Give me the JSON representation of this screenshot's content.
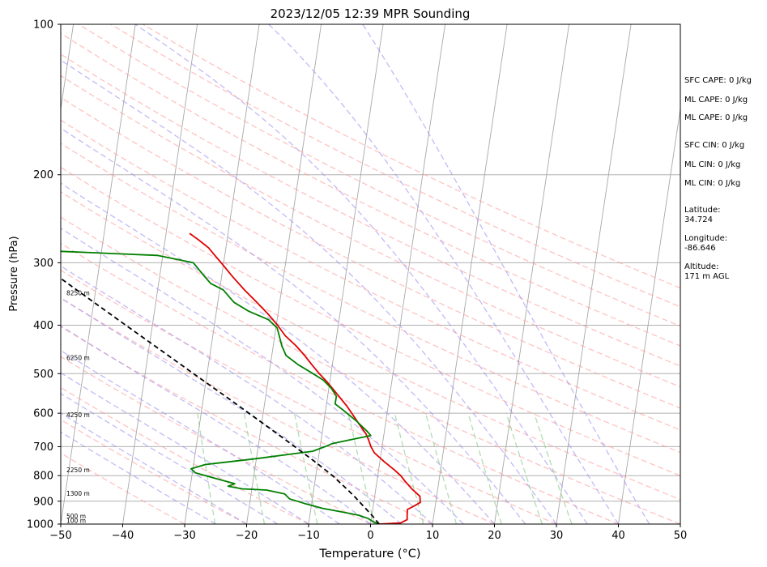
{
  "chart_data": {
    "type": "line",
    "title": "2023/12/05 12:39 MPR Sounding",
    "xlabel": "Temperature (°C)",
    "ylabel": "Pressure (hPa)",
    "xlim": [
      -50,
      50
    ],
    "ylim": [
      1000,
      100
    ],
    "y_scale": "log",
    "skew": "skew-T",
    "grid": true,
    "x_ticks": [
      -50,
      -40,
      -30,
      -20,
      -10,
      0,
      10,
      20,
      30,
      40,
      50
    ],
    "x_tick_labels": [
      "−50",
      "−40",
      "−30",
      "−20",
      "−10",
      "0",
      "10",
      "20",
      "30",
      "40",
      "50"
    ],
    "y_ticks": [
      1000,
      900,
      800,
      700,
      600,
      500,
      400,
      300,
      200,
      100
    ],
    "y_tick_labels": [
      "1000",
      "900",
      "800",
      "700",
      "600",
      "500",
      "400",
      "300",
      "200",
      "100"
    ],
    "height_labels": [
      {
        "p": 985,
        "label": "100 m"
      },
      {
        "p": 965,
        "label": "500 m"
      },
      {
        "p": 870,
        "label": "1300 m"
      },
      {
        "p": 780,
        "label": "2250 m"
      },
      {
        "p": 605,
        "label": "4250 m"
      },
      {
        "p": 465,
        "label": "6250 m"
      },
      {
        "p": 345,
        "label": "8250 m"
      }
    ],
    "series": [
      {
        "role": "temperature",
        "color": "#e00000",
        "points": [
          [
            1000,
            1.4
          ],
          [
            995,
            4.8
          ],
          [
            980,
            5.8
          ],
          [
            960,
            5.7
          ],
          [
            935,
            5.6
          ],
          [
            920,
            6.6
          ],
          [
            905,
            7.5
          ],
          [
            880,
            7.3
          ],
          [
            850,
            5.8
          ],
          [
            820,
            4.5
          ],
          [
            800,
            3.7
          ],
          [
            780,
            2.6
          ],
          [
            750,
            0.7
          ],
          [
            720,
            -1.1
          ],
          [
            700,
            -1.8
          ],
          [
            680,
            -2.3
          ],
          [
            660,
            -2.9
          ],
          [
            630,
            -4.3
          ],
          [
            600,
            -5.7
          ],
          [
            580,
            -6.7
          ],
          [
            560,
            -7.9
          ],
          [
            540,
            -9.1
          ],
          [
            520,
            -10.4
          ],
          [
            500,
            -11.9
          ],
          [
            480,
            -13.3
          ],
          [
            460,
            -14.7
          ],
          [
            440,
            -16.3
          ],
          [
            420,
            -18.3
          ],
          [
            400,
            -19.8
          ],
          [
            380,
            -21.6
          ],
          [
            360,
            -23.7
          ],
          [
            340,
            -26.0
          ],
          [
            320,
            -28.2
          ],
          [
            300,
            -30.4
          ],
          [
            290,
            -31.6
          ],
          [
            280,
            -32.8
          ],
          [
            270,
            -34.6
          ],
          [
            262,
            -36.2
          ]
        ]
      },
      {
        "role": "dewpoint",
        "color": "#008000",
        "points": [
          [
            1000,
            1.4
          ],
          [
            990,
            0.4
          ],
          [
            975,
            -0.5
          ],
          [
            960,
            -2.1
          ],
          [
            945,
            -5.1
          ],
          [
            930,
            -8.1
          ],
          [
            910,
            -11.1
          ],
          [
            890,
            -13.7
          ],
          [
            870,
            -14.6
          ],
          [
            855,
            -17.6
          ],
          [
            850,
            -21.6
          ],
          [
            840,
            -23.9
          ],
          [
            830,
            -22.9
          ],
          [
            810,
            -26.2
          ],
          [
            790,
            -29.5
          ],
          [
            775,
            -30.3
          ],
          [
            760,
            -28.1
          ],
          [
            740,
            -20.1
          ],
          [
            715,
            -11.1
          ],
          [
            700,
            -9.2
          ],
          [
            690,
            -8.1
          ],
          [
            680,
            -5.8
          ],
          [
            665,
            -2.1
          ],
          [
            650,
            -2.9
          ],
          [
            620,
            -4.9
          ],
          [
            590,
            -7.3
          ],
          [
            575,
            -8.6
          ],
          [
            555,
            -8.6
          ],
          [
            535,
            -9.6
          ],
          [
            515,
            -11.1
          ],
          [
            500,
            -12.9
          ],
          [
            480,
            -15.5
          ],
          [
            460,
            -17.7
          ],
          [
            440,
            -18.6
          ],
          [
            425,
            -19.1
          ],
          [
            405,
            -19.8
          ],
          [
            390,
            -21.4
          ],
          [
            375,
            -24.8
          ],
          [
            360,
            -27.4
          ],
          [
            340,
            -29.4
          ],
          [
            330,
            -31.6
          ],
          [
            320,
            -32.7
          ],
          [
            300,
            -34.9
          ],
          [
            290,
            -40.9
          ],
          [
            282,
            -64.5
          ]
        ]
      },
      {
        "role": "parcel",
        "color": "#000000",
        "style": "dashed",
        "points": [
          [
            1000,
            1.4
          ],
          [
            960,
            0.0
          ],
          [
            920,
            -1.6
          ],
          [
            880,
            -3.3
          ],
          [
            850,
            -4.7
          ],
          [
            800,
            -7.3
          ],
          [
            750,
            -10.5
          ],
          [
            700,
            -14.1
          ],
          [
            650,
            -18.0
          ],
          [
            600,
            -22.3
          ],
          [
            550,
            -27.0
          ],
          [
            500,
            -32.2
          ],
          [
            450,
            -37.9
          ],
          [
            400,
            -44.3
          ],
          [
            350,
            -51.5
          ],
          [
            300,
            -59.8
          ],
          [
            280,
            -63.6
          ]
        ]
      }
    ],
    "background_lines": {
      "isotherms_step_c": 10,
      "dry_adiabats_start_c": [
        -30,
        -20,
        -10,
        0,
        10,
        20,
        30,
        40,
        50,
        60,
        70,
        80,
        90,
        100,
        110,
        120,
        130,
        140,
        150,
        160
      ],
      "moist_adiabats_start_c": [
        -25,
        -20,
        -15,
        -10,
        -5,
        0,
        5,
        10,
        15,
        20,
        25,
        30,
        35,
        40,
        45
      ],
      "mixing_ratios_gkg": [
        0.5,
        1,
        2,
        4,
        7,
        10,
        16,
        24,
        32
      ],
      "mixing_ratio_top_p": 600,
      "dry_adiabat_color": "#ff9999",
      "moist_adiabat_color": "#9b8cf0",
      "mixing_ratio_color": "#8fd08f"
    },
    "annotations": [
      "SFC CAPE: 0 J/kg",
      "ML CAPE: 0 J/kg",
      "ML CAPE: 0 J/kg",
      "SFC CIN: 0 J/kg",
      "ML CIN: 0 J/kg",
      "ML CIN: 0 J/kg",
      "Latitude:",
      "34.724",
      "Longitude:",
      "-86.646",
      "Altitude:",
      "171 m AGL"
    ]
  }
}
